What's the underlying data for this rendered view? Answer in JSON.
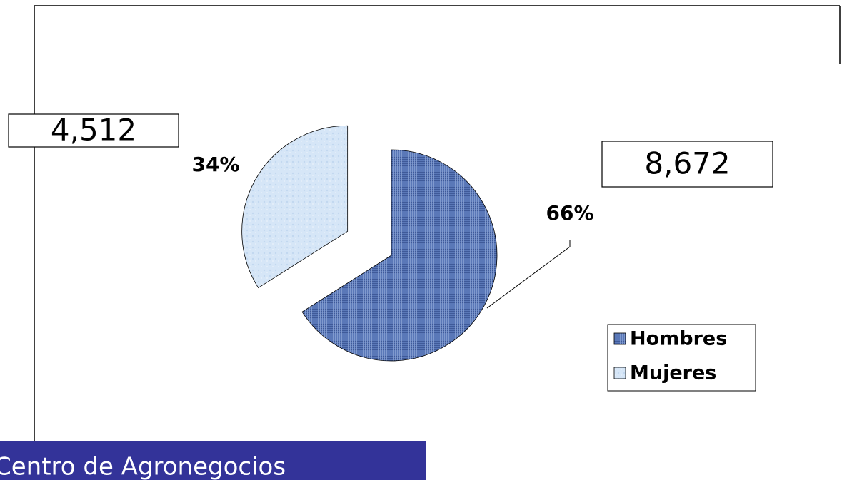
{
  "chart_data": {
    "type": "pie",
    "categories": [
      "Hombres",
      "Mujeres"
    ],
    "values": [
      66,
      34
    ],
    "value_labels": [
      "66%",
      "34%"
    ],
    "colors": [
      "#5a78b8",
      "#d6e6f7"
    ],
    "annotations": [
      "8,672",
      "4,512"
    ],
    "legend": "right"
  },
  "footer": "Centro de Agronegocios"
}
